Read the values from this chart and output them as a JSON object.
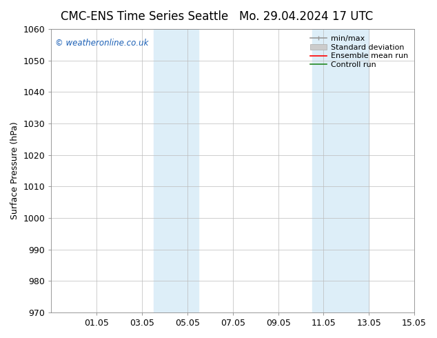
{
  "title_left": "CMC-ENS Time Series Seattle",
  "title_right": "Mo. 29.04.2024 17 UTC",
  "ylabel": "Surface Pressure (hPa)",
  "ylim": [
    970,
    1060
  ],
  "yticks": [
    970,
    980,
    990,
    1000,
    1010,
    1020,
    1030,
    1040,
    1050,
    1060
  ],
  "xlim": [
    0,
    16
  ],
  "xtick_labels": [
    "01.05",
    "03.05",
    "05.05",
    "07.05",
    "09.05",
    "11.05",
    "13.05",
    "15.05"
  ],
  "xtick_positions": [
    2,
    4,
    6,
    8,
    10,
    12,
    14,
    16
  ],
  "shaded_bands": [
    {
      "x_start": 4.5,
      "x_end": 6.5,
      "color": "#ddeef8"
    },
    {
      "x_start": 11.5,
      "x_end": 14.0,
      "color": "#ddeef8"
    }
  ],
  "watermark": "© weatheronline.co.uk",
  "watermark_color": "#1a5fb5",
  "background_color": "#ffffff",
  "plot_bg_color": "#ffffff",
  "grid_color": "#bbbbbb",
  "legend_items": [
    {
      "label": "min/max",
      "color": "#999999",
      "lw": 1.2
    },
    {
      "label": "Standard deviation",
      "color": "#cccccc",
      "lw": 6
    },
    {
      "label": "Ensemble mean run",
      "color": "#ff0000",
      "lw": 1.2
    },
    {
      "label": "Controll run",
      "color": "#228822",
      "lw": 1.2
    }
  ],
  "title_fontsize": 12,
  "axis_fontsize": 9,
  "tick_fontsize": 9,
  "legend_fontsize": 8
}
